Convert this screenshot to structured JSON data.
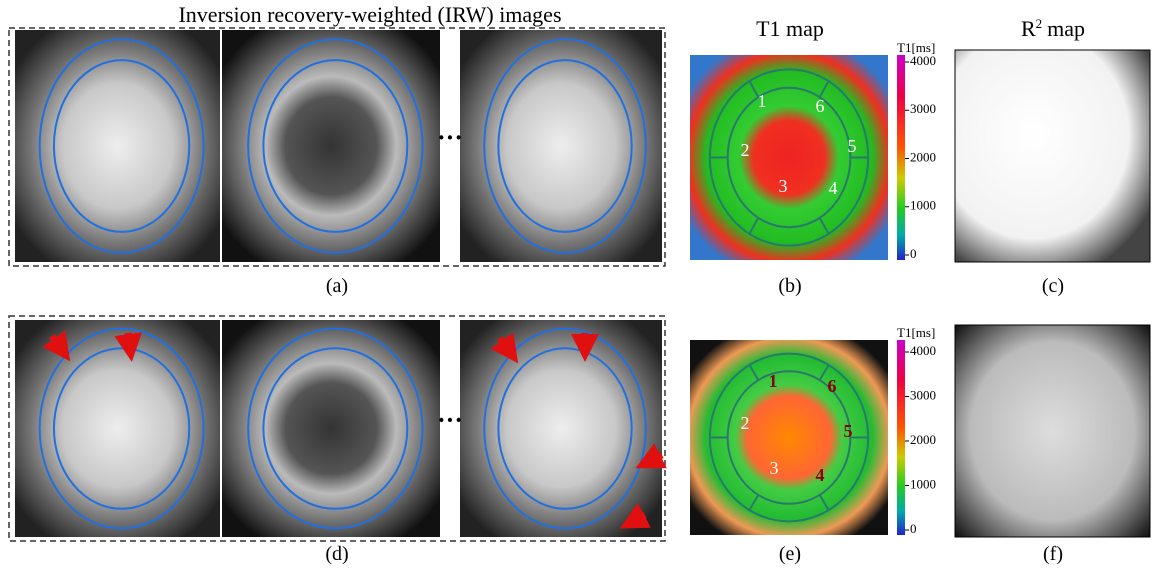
{
  "header": {
    "irw_title": "Inversion recovery-weighted (IRW) images",
    "t1_title": "T1 map",
    "r2_title": "R",
    "r2_sup": "2",
    "r2_rest": "map"
  },
  "rows": [
    {
      "panel_labels": [
        "(a)",
        "(b)",
        "(c)"
      ],
      "ellipsis": "···",
      "colorbar": {
        "label": "T1[ms]",
        "ticks": [
          4000,
          3000,
          2000,
          1000,
          0
        ]
      },
      "segments": [
        "1",
        "2",
        "3",
        "4",
        "5",
        "6"
      ]
    },
    {
      "panel_labels": [
        "(d)",
        "(e)",
        "(f)"
      ],
      "ellipsis": "···",
      "colorbar": {
        "label": "T1[ms]",
        "ticks": [
          4000,
          3000,
          2000,
          1000,
          0
        ]
      },
      "segments": [
        "1",
        "2",
        "3",
        "4",
        "5",
        "6"
      ]
    }
  ]
}
